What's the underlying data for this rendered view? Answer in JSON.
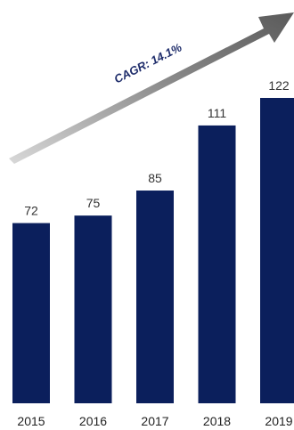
{
  "chart_data": {
    "type": "bar",
    "categories": [
      "2015",
      "2016",
      "2017",
      "2018",
      "2019"
    ],
    "values": [
      72,
      75,
      85,
      111,
      122
    ],
    "title": "",
    "xlabel": "",
    "ylabel": "",
    "ylim": [
      0,
      122
    ],
    "grid": false,
    "legend": "none",
    "bar_color": "#0b1f5c",
    "annotation": {
      "label": "CAGR: 14.1%",
      "arrow_color": "#8c8c8c"
    }
  }
}
